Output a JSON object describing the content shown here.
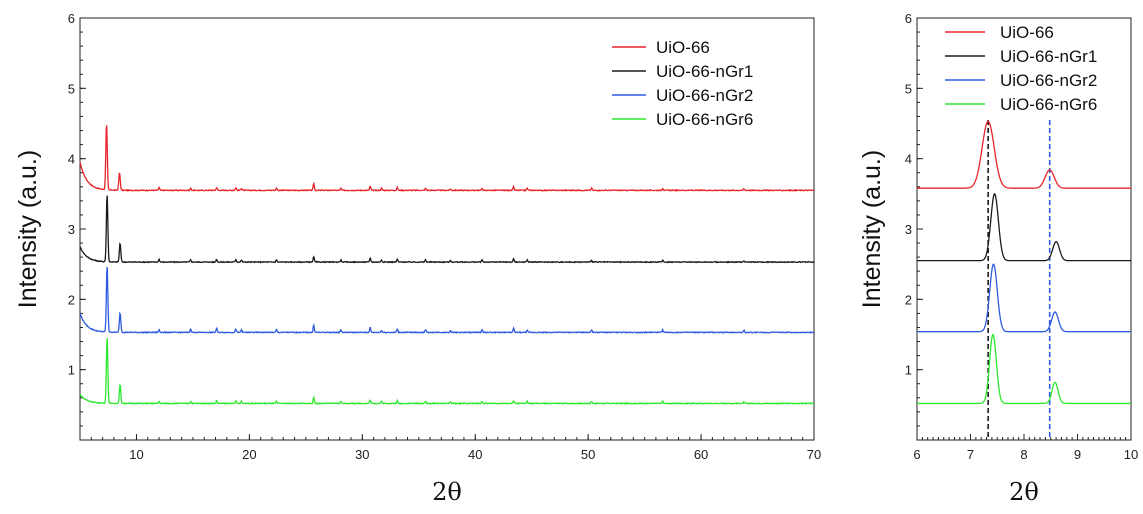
{
  "chart_data": [
    {
      "type": "line",
      "title": "",
      "xlabel": "2θ",
      "ylabel": "Intensity (a.u.)",
      "xlim": [
        5,
        70
      ],
      "ylim": [
        0,
        6
      ],
      "xticks": [
        10,
        20,
        30,
        40,
        50,
        60,
        70
      ],
      "yticks": [
        1,
        2,
        3,
        4,
        5,
        6
      ],
      "legend_position": "top-right",
      "grid": false,
      "series": [
        {
          "name": "UiO-66",
          "color": "#e8242b",
          "baseline": 3.55,
          "start": 3.95,
          "peaks": [
            [
              7.35,
              0.95
            ],
            [
              8.5,
              0.25
            ],
            [
              12.0,
              0.04
            ],
            [
              14.8,
              0.03
            ],
            [
              17.1,
              0.04
            ],
            [
              18.8,
              0.04
            ],
            [
              19.3,
              0.03
            ],
            [
              22.4,
              0.03
            ],
            [
              25.7,
              0.1
            ],
            [
              28.1,
              0.03
            ],
            [
              30.7,
              0.06
            ],
            [
              31.7,
              0.03
            ],
            [
              33.1,
              0.04
            ],
            [
              35.6,
              0.03
            ],
            [
              37.8,
              0.02
            ],
            [
              40.6,
              0.03
            ],
            [
              43.4,
              0.05
            ],
            [
              44.6,
              0.03
            ],
            [
              50.3,
              0.03
            ],
            [
              56.6,
              0.03
            ],
            [
              63.8,
              0.02
            ]
          ]
        },
        {
          "name": "UiO-66-nGr1",
          "color": "#1a1a1a",
          "baseline": 2.53,
          "start": 2.75,
          "peaks": [
            [
              7.4,
              0.97
            ],
            [
              8.55,
              0.27
            ],
            [
              12.0,
              0.04
            ],
            [
              14.8,
              0.03
            ],
            [
              17.1,
              0.04
            ],
            [
              18.8,
              0.04
            ],
            [
              19.3,
              0.03
            ],
            [
              22.4,
              0.03
            ],
            [
              25.7,
              0.08
            ],
            [
              28.1,
              0.03
            ],
            [
              30.7,
              0.06
            ],
            [
              31.7,
              0.03
            ],
            [
              33.1,
              0.04
            ],
            [
              35.6,
              0.03
            ],
            [
              37.8,
              0.02
            ],
            [
              40.6,
              0.03
            ],
            [
              43.4,
              0.05
            ],
            [
              44.6,
              0.03
            ],
            [
              50.3,
              0.03
            ],
            [
              56.6,
              0.03
            ],
            [
              63.8,
              0.02
            ]
          ]
        },
        {
          "name": "UiO-66-nGr2",
          "color": "#2e5be0",
          "baseline": 1.53,
          "start": 1.8,
          "peaks": [
            [
              7.4,
              0.95
            ],
            [
              8.55,
              0.28
            ],
            [
              12.0,
              0.04
            ],
            [
              14.8,
              0.05
            ],
            [
              17.1,
              0.06
            ],
            [
              18.8,
              0.05
            ],
            [
              19.3,
              0.04
            ],
            [
              22.4,
              0.04
            ],
            [
              25.7,
              0.11
            ],
            [
              28.1,
              0.04
            ],
            [
              30.7,
              0.07
            ],
            [
              31.7,
              0.03
            ],
            [
              33.1,
              0.05
            ],
            [
              35.6,
              0.04
            ],
            [
              37.8,
              0.03
            ],
            [
              40.6,
              0.04
            ],
            [
              43.4,
              0.06
            ],
            [
              44.6,
              0.03
            ],
            [
              50.3,
              0.04
            ],
            [
              56.6,
              0.04
            ],
            [
              63.8,
              0.03
            ]
          ]
        },
        {
          "name": "UiO-66-nGr6",
          "color": "#2ee82e",
          "baseline": 0.52,
          "start": 0.65,
          "peaks": [
            [
              7.4,
              0.95
            ],
            [
              8.55,
              0.27
            ],
            [
              12.0,
              0.03
            ],
            [
              14.8,
              0.03
            ],
            [
              17.1,
              0.04
            ],
            [
              18.8,
              0.04
            ],
            [
              19.3,
              0.03
            ],
            [
              22.4,
              0.03
            ],
            [
              25.7,
              0.08
            ],
            [
              28.1,
              0.03
            ],
            [
              30.7,
              0.05
            ],
            [
              31.7,
              0.03
            ],
            [
              33.1,
              0.04
            ],
            [
              35.6,
              0.03
            ],
            [
              37.8,
              0.02
            ],
            [
              40.6,
              0.03
            ],
            [
              43.4,
              0.04
            ],
            [
              44.6,
              0.03
            ],
            [
              50.3,
              0.03
            ],
            [
              56.6,
              0.03
            ],
            [
              63.8,
              0.02
            ]
          ]
        }
      ]
    },
    {
      "type": "line",
      "title": "",
      "xlabel": "2θ",
      "ylabel": "Intensity (a.u.)",
      "xlim": [
        6,
        10
      ],
      "ylim": [
        0,
        6
      ],
      "xticks": [
        6,
        7,
        8,
        9,
        10
      ],
      "yticks": [
        1,
        2,
        3,
        4,
        5,
        6
      ],
      "legend_position": "top-right",
      "grid": false,
      "reference_lines": [
        {
          "x": 7.33,
          "color": "#1a1a1a",
          "style": "dashed"
        },
        {
          "x": 8.48,
          "color": "#2e5be0",
          "style": "dashed"
        }
      ],
      "series": [
        {
          "name": "UiO-66",
          "color": "#e8242b",
          "baseline": 3.58,
          "peaks": [
            [
              7.33,
              0.95,
              0.16
            ],
            [
              8.48,
              0.26,
              0.12
            ]
          ]
        },
        {
          "name": "UiO-66-nGr1",
          "color": "#1a1a1a",
          "baseline": 2.55,
          "peaks": [
            [
              7.45,
              0.95,
              0.1
            ],
            [
              8.6,
              0.27,
              0.09
            ]
          ]
        },
        {
          "name": "UiO-66-nGr2",
          "color": "#2e5be0",
          "baseline": 1.54,
          "peaks": [
            [
              7.43,
              0.96,
              0.1
            ],
            [
              8.58,
              0.28,
              0.09
            ]
          ]
        },
        {
          "name": "UiO-66-nGr6",
          "color": "#2ee82e",
          "baseline": 0.52,
          "peaks": [
            [
              7.42,
              0.98,
              0.09
            ],
            [
              8.58,
              0.3,
              0.08
            ]
          ]
        }
      ]
    }
  ]
}
